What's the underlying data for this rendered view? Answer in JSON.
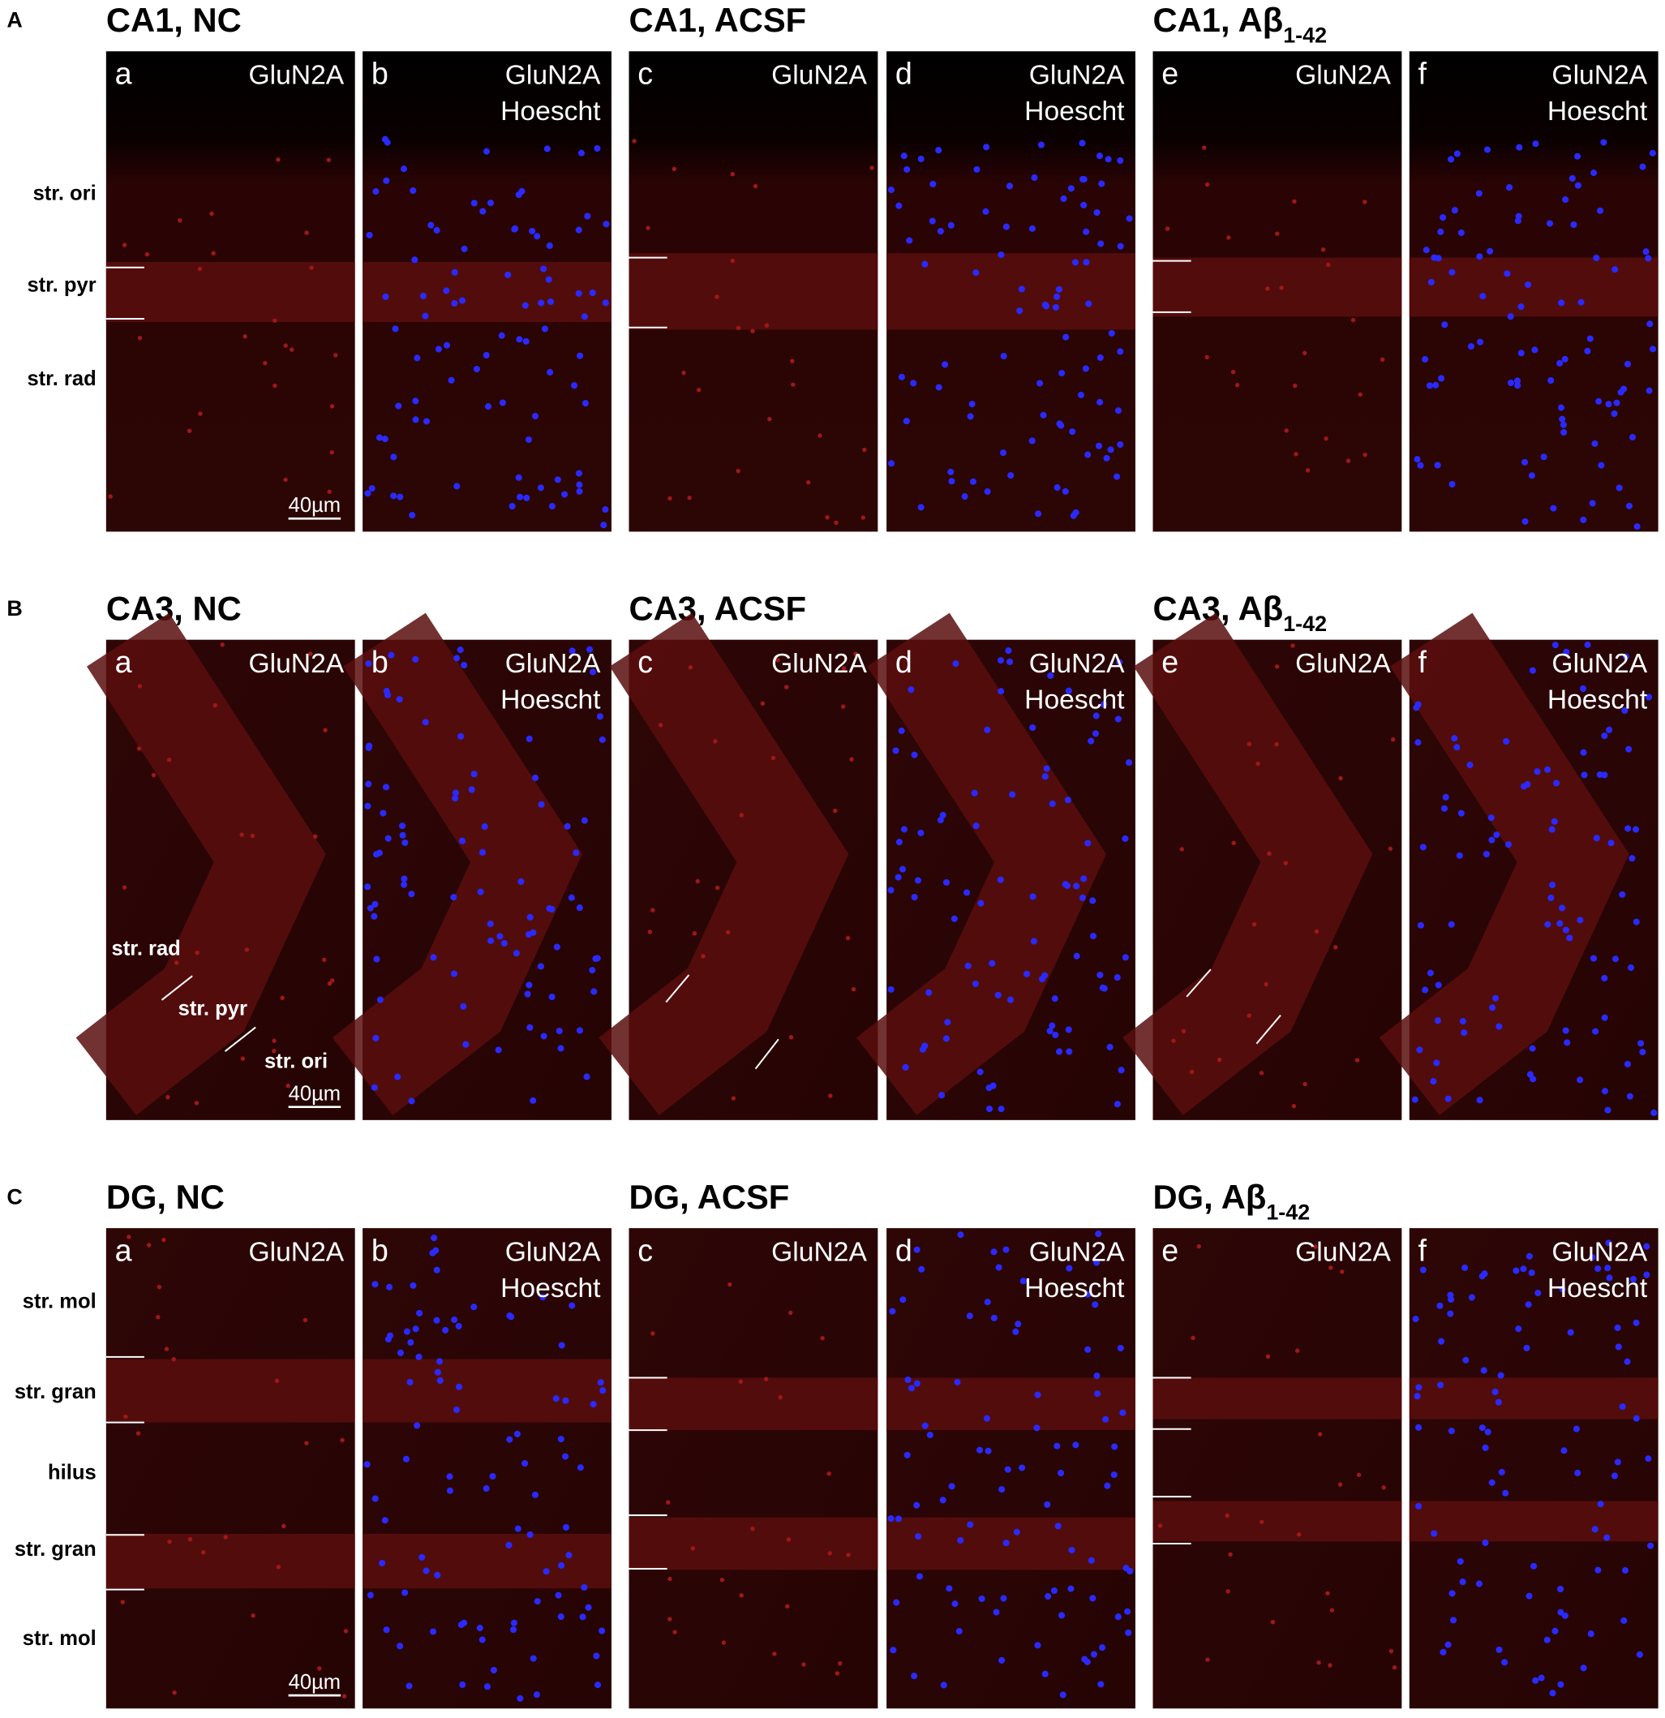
{
  "sections": [
    {
      "label": "A",
      "layers": [
        "str. ori",
        "str. pyr",
        "str. rad"
      ],
      "scale_bar": "40µm",
      "groups": [
        {
          "title": {
            "text": "CA1, NC"
          },
          "panels": [
            {
              "letter": "a",
              "channels": [
                "GluN2A"
              ]
            },
            {
              "letter": "b",
              "channels": [
                "GluN2A",
                "Hoescht"
              ]
            }
          ]
        },
        {
          "title": {
            "text": "CA1, ACSF"
          },
          "panels": [
            {
              "letter": "c",
              "channels": [
                "GluN2A"
              ]
            },
            {
              "letter": "d",
              "channels": [
                "GluN2A",
                "Hoescht"
              ]
            }
          ]
        },
        {
          "title": {
            "text": "CA1, Aβ",
            "sub": "1-42"
          },
          "panels": [
            {
              "letter": "e",
              "channels": [
                "GluN2A"
              ]
            },
            {
              "letter": "f",
              "channels": [
                "GluN2A",
                "Hoescht"
              ]
            }
          ]
        }
      ]
    },
    {
      "label": "B",
      "layers": [
        "str. rad",
        "str. pyr",
        "str. ori"
      ],
      "scale_bar": "40µm",
      "groups": [
        {
          "title": {
            "text": "CA3, NC"
          },
          "panels": [
            {
              "letter": "a",
              "channels": [
                "GluN2A"
              ]
            },
            {
              "letter": "b",
              "channels": [
                "GluN2A",
                "Hoescht"
              ]
            }
          ]
        },
        {
          "title": {
            "text": "CA3, ACSF"
          },
          "panels": [
            {
              "letter": "c",
              "channels": [
                "GluN2A"
              ]
            },
            {
              "letter": "d",
              "channels": [
                "GluN2A",
                "Hoescht"
              ]
            }
          ]
        },
        {
          "title": {
            "text": "CA3, Aβ",
            "sub": "1-42"
          },
          "panels": [
            {
              "letter": "e",
              "channels": [
                "GluN2A"
              ]
            },
            {
              "letter": "f",
              "channels": [
                "GluN2A",
                "Hoescht"
              ]
            }
          ]
        }
      ]
    },
    {
      "label": "C",
      "layers": [
        "str. mol",
        "str. gran",
        "hilus",
        "str. gran",
        "str. mol"
      ],
      "scale_bar": "40µm",
      "groups": [
        {
          "title": {
            "text": "DG, NC"
          },
          "panels": [
            {
              "letter": "a",
              "channels": [
                "GluN2A"
              ]
            },
            {
              "letter": "b",
              "channels": [
                "GluN2A",
                "Hoescht"
              ]
            }
          ]
        },
        {
          "title": {
            "text": "DG, ACSF"
          },
          "panels": [
            {
              "letter": "c",
              "channels": [
                "GluN2A"
              ]
            },
            {
              "letter": "d",
              "channels": [
                "GluN2A",
                "Hoescht"
              ]
            }
          ]
        },
        {
          "title": {
            "text": "DG, Aβ",
            "sub": "1-42"
          },
          "panels": [
            {
              "letter": "e",
              "channels": [
                "GluN2A"
              ]
            },
            {
              "letter": "f",
              "channels": [
                "GluN2A",
                "Hoescht"
              ]
            }
          ]
        }
      ]
    }
  ]
}
